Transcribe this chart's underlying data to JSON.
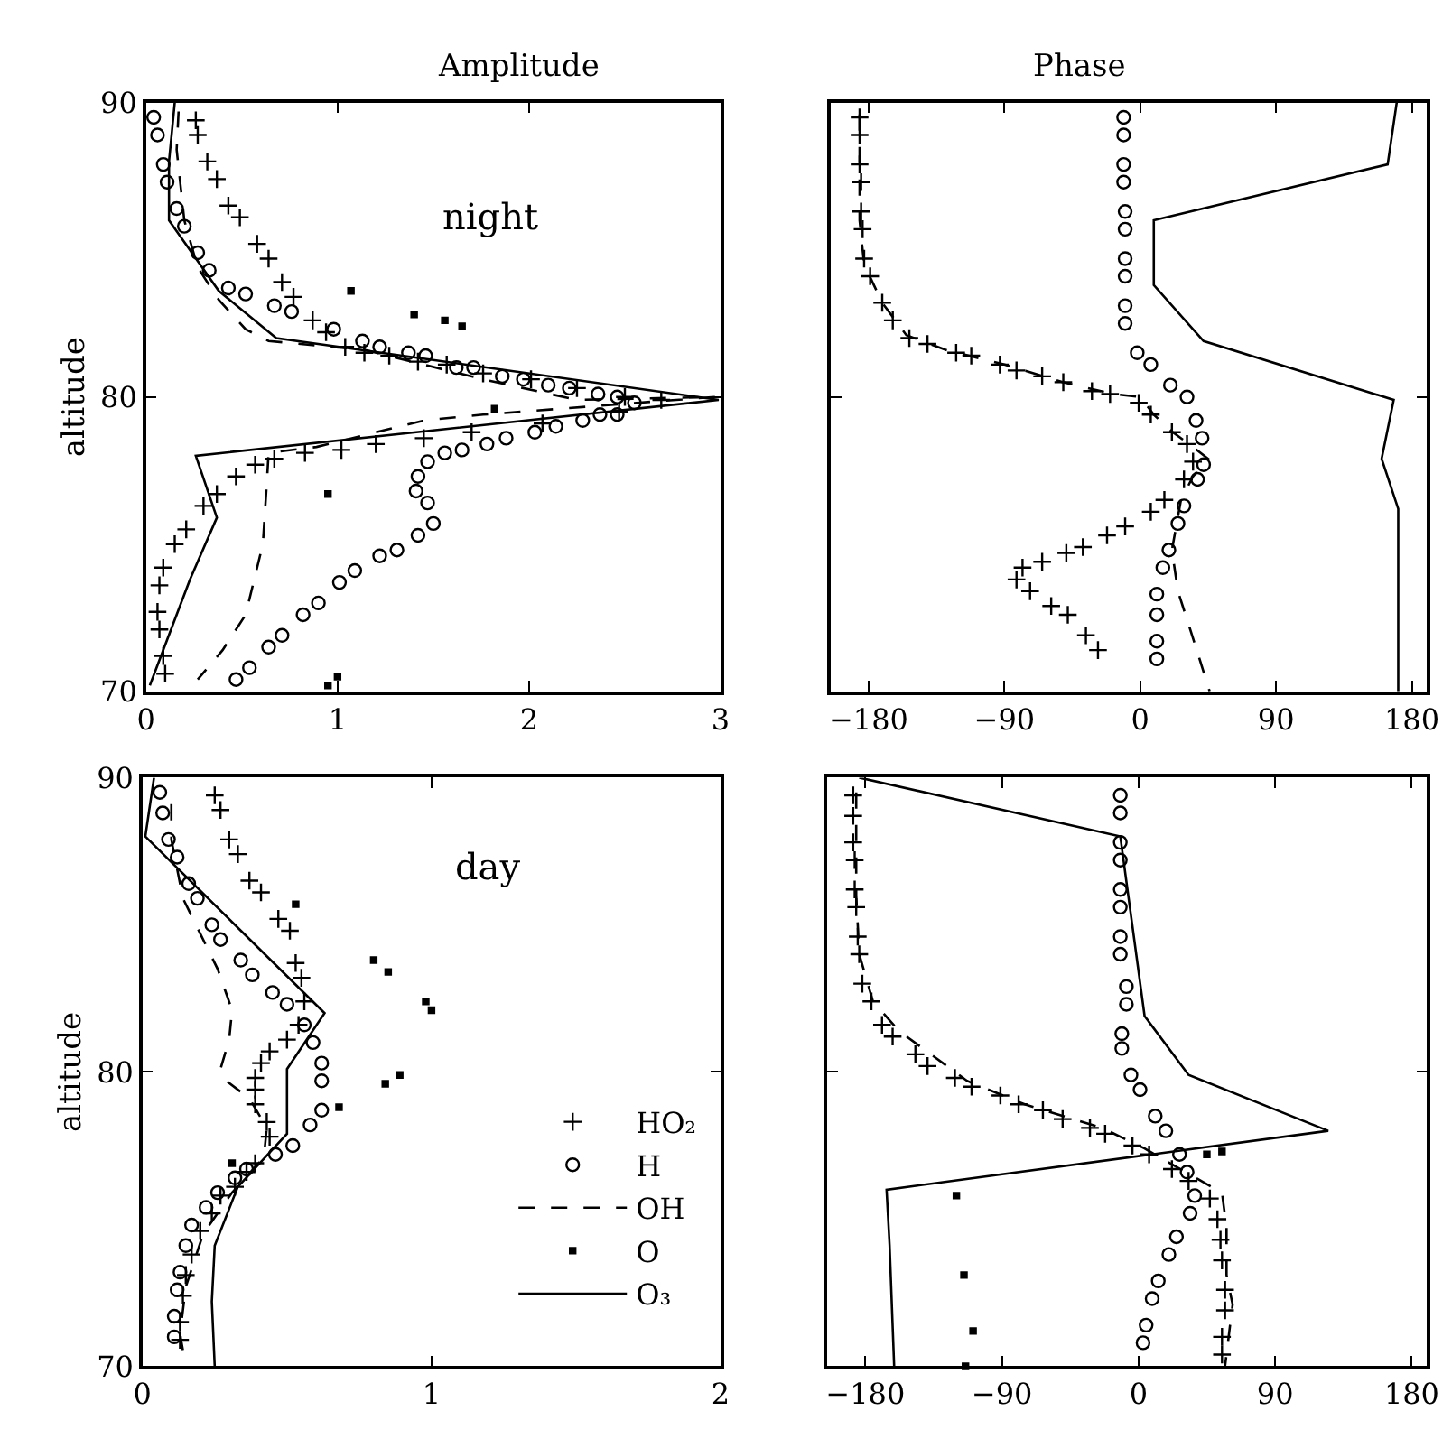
{
  "chart_data": [
    {
      "type": "line",
      "title": "Amplitude",
      "ylabel": "altitude",
      "annotations": [
        "night"
      ],
      "xlim": [
        0,
        3
      ],
      "xticks": [
        0,
        1,
        2,
        3
      ],
      "ylim": [
        70,
        90
      ],
      "yticks": [
        70,
        80,
        90
      ],
      "series": [
        {
          "type": "scatter",
          "marker": "cross",
          "color": "#000000",
          "x": [
            0.26,
            0.27,
            0.32,
            0.37,
            0.43,
            0.49,
            0.58,
            0.64,
            0.71,
            0.77,
            0.87,
            0.94,
            1.04,
            1.14,
            1.27,
            1.42,
            1.57,
            1.76,
            2.01,
            2.25,
            2.5,
            2.69,
            2.47,
            2.07,
            1.7,
            1.45,
            1.2,
            1.02,
            0.83,
            0.67,
            0.57,
            0.47,
            0.37,
            0.3,
            0.21,
            0.15,
            0.09,
            0.07,
            0.06,
            0.07,
            0.09,
            0.1
          ],
          "values": [
            89.4,
            88.9,
            88,
            87.4,
            86.5,
            86.1,
            85.2,
            84.7,
            83.9,
            83.4,
            82.6,
            82.2,
            81.7,
            81.5,
            81.4,
            81.2,
            81.1,
            80.8,
            80.6,
            80.3,
            80,
            79.9,
            79.5,
            79.1,
            78.8,
            78.6,
            78.4,
            78.2,
            78.1,
            77.9,
            77.7,
            77.3,
            76.7,
            76.3,
            75.5,
            75,
            74.2,
            73.6,
            72.7,
            72.1,
            71.2,
            70.6
          ]
        },
        {
          "type": "scatter",
          "marker": "circle",
          "color": "#000000",
          "x": [
            0.04,
            0.06,
            0.09,
            0.11,
            0.16,
            0.2,
            0.27,
            0.33,
            0.43,
            0.52,
            0.67,
            0.76,
            0.98,
            1.13,
            1.22,
            1.37,
            1.46,
            1.62,
            1.71,
            1.86,
            1.97,
            2.1,
            2.21,
            2.36,
            2.46,
            2.55,
            2.46,
            2.37,
            2.28,
            2.14,
            2.03,
            1.88,
            1.78,
            1.65,
            1.56,
            1.47,
            1.42,
            1.41,
            1.47,
            1.5,
            1.42,
            1.31,
            1.22,
            1.09,
            1.01,
            0.9,
            0.82,
            0.71,
            0.64,
            0.54,
            0.47
          ],
          "values": [
            89.5,
            88.9,
            87.9,
            87.3,
            86.4,
            85.8,
            84.9,
            84.3,
            83.7,
            83.5,
            83.1,
            82.9,
            82.3,
            81.9,
            81.7,
            81.5,
            81.4,
            81,
            81,
            80.7,
            80.6,
            80.4,
            80.3,
            80.1,
            80,
            79.8,
            79.4,
            79.4,
            79.2,
            79,
            78.8,
            78.6,
            78.4,
            78.2,
            78.1,
            77.8,
            77.3,
            76.8,
            76.4,
            75.7,
            75.3,
            74.8,
            74.6,
            74.1,
            73.7,
            73,
            72.6,
            71.9,
            71.5,
            70.8,
            70.4
          ]
        },
        {
          "line_style": "dashed",
          "color": "#000000",
          "x": [
            0.17,
            0.16,
            0.18,
            0.2,
            0.27,
            0.38,
            0.52,
            0.64,
            1.14,
            1.76,
            2.25,
            2.97,
            1.76,
            1.45,
            0.89,
            0.64,
            0.63,
            0.61,
            0.52,
            0.4,
            0.27
          ],
          "values": [
            89.7,
            88.4,
            87.2,
            86,
            84.4,
            83.3,
            82.3,
            81.9,
            81.6,
            80.6,
            79.9,
            80,
            79.4,
            79.2,
            78.3,
            78.1,
            77,
            75,
            72.6,
            71.4,
            70.4
          ]
        },
        {
          "type": "scatter",
          "marker": "square",
          "color": "#000000",
          "x": [
            1.07,
            1.4,
            1.56,
            1.65,
            1.82,
            0.95,
            0.95,
            1.0
          ],
          "values": [
            83.6,
            82.8,
            82.6,
            82.4,
            79.6,
            76.7,
            70.2,
            70.5
          ]
        },
        {
          "line_style": "solid",
          "color": "#000000",
          "x": [
            0.15,
            0.12,
            0.12,
            0.38,
            0.68,
            2.99,
            0.26,
            0.37,
            0.23,
            0.02
          ],
          "values": [
            90,
            88,
            86,
            83.6,
            82,
            79.9,
            78,
            75.9,
            73.8,
            70.2
          ]
        }
      ]
    },
    {
      "type": "line",
      "title": "Phase",
      "xlim": [
        -205,
        190
      ],
      "xticks": [
        -180,
        -90,
        0,
        90,
        180
      ],
      "ylim": [
        70,
        90
      ],
      "yticks": [
        70,
        80,
        90
      ],
      "tick_labels": "x",
      "series": [
        {
          "type": "scatter",
          "marker": "cross",
          "color": "#000000",
          "x": [
            -186,
            -186,
            -186,
            -185,
            -185,
            -184,
            -183,
            -179,
            -171,
            -164,
            -153,
            -141,
            -122,
            -112,
            -93,
            -82,
            -65,
            -51,
            -32,
            -20,
            -1,
            7,
            21,
            31,
            35,
            29,
            16,
            7,
            -10,
            -22,
            -38,
            -49,
            -65,
            -78,
            -82,
            -73,
            -59,
            -48,
            -36,
            -28
          ],
          "values": [
            89.5,
            88.9,
            87.9,
            87.3,
            86.3,
            85.7,
            84.7,
            84.1,
            83.2,
            82.6,
            82,
            81.8,
            81.5,
            81.4,
            81.1,
            80.9,
            80.7,
            80.5,
            80.2,
            80.1,
            79.8,
            79.4,
            78.8,
            78.4,
            77.8,
            77.2,
            76.5,
            76.1,
            75.6,
            75.3,
            74.9,
            74.7,
            74.4,
            74.2,
            73.8,
            73.4,
            72.9,
            72.6,
            71.9,
            71.4
          ]
        },
        {
          "type": "scatter",
          "marker": "circle",
          "color": "#000000",
          "x": [
            -11,
            -11,
            -11,
            -11,
            -10,
            -10,
            -10,
            -10,
            -10,
            -10,
            -2,
            7,
            20,
            31,
            37,
            41,
            42,
            38,
            29,
            25,
            19,
            15,
            11,
            11,
            11,
            11
          ],
          "values": [
            89.5,
            88.9,
            87.9,
            87.3,
            86.3,
            85.7,
            84.7,
            84.1,
            83.1,
            82.5,
            81.5,
            81.1,
            80.4,
            80,
            79.2,
            78.6,
            77.7,
            77.2,
            76.3,
            75.7,
            74.8,
            74.2,
            73.3,
            72.6,
            71.7,
            71.1
          ]
        },
        {
          "line_style": "dashed",
          "color": "#000000",
          "x": [
            -186,
            -186,
            -183,
            -171,
            -155,
            -129,
            -90,
            -51,
            -18,
            0,
            9,
            19,
            35,
            45,
            35,
            27,
            21,
            25,
            35,
            46
          ],
          "values": [
            89.6,
            86,
            84.5,
            83.2,
            82.1,
            81.6,
            81.1,
            80.5,
            80.1,
            80,
            79.4,
            78.9,
            78.3,
            77.9,
            77.3,
            76.5,
            74.8,
            73.4,
            71.8,
            70
          ]
        },
        {
          "line_style": "solid",
          "color": "#000000",
          "x": [
            170,
            164,
            9,
            9,
            42,
            168,
            160,
            171,
            171
          ],
          "values": [
            90,
            87.9,
            86,
            83.8,
            81.9,
            79.9,
            77.9,
            76.2,
            70
          ]
        }
      ]
    },
    {
      "type": "line",
      "ylabel": "altitude",
      "annotations": [
        "day"
      ],
      "xlim": [
        0,
        2
      ],
      "xticks": [
        0,
        1,
        2
      ],
      "ylim": [
        70,
        90
      ],
      "yticks": [
        70,
        80,
        90
      ],
      "legend": "bottom right",
      "series": [
        {
          "name": "HO₂",
          "type": "scatter",
          "marker": "cross",
          "color": "#000000",
          "x": [
            0.25,
            0.27,
            0.3,
            0.33,
            0.37,
            0.41,
            0.47,
            0.51,
            0.53,
            0.55,
            0.56,
            0.54,
            0.5,
            0.44,
            0.41,
            0.39,
            0.39,
            0.39,
            0.43,
            0.44,
            0.39,
            0.36,
            0.32,
            0.27,
            0.24,
            0.2,
            0.17,
            0.15,
            0.14,
            0.13,
            0.13
          ],
          "values": [
            89.4,
            88.9,
            87.9,
            87.4,
            86.5,
            86.1,
            85.2,
            84.8,
            83.7,
            83.2,
            82.4,
            81.6,
            81.1,
            80.7,
            80.3,
            79.8,
            79.4,
            78.9,
            78.3,
            77.8,
            76.9,
            76.6,
            76.1,
            75.8,
            75.2,
            74.6,
            73.8,
            73.1,
            72.4,
            71.5,
            70.9
          ]
        },
        {
          "name": "H",
          "type": "scatter",
          "marker": "circle",
          "color": "#000000",
          "x": [
            0.06,
            0.07,
            0.09,
            0.12,
            0.16,
            0.19,
            0.24,
            0.27,
            0.34,
            0.38,
            0.45,
            0.5,
            0.56,
            0.59,
            0.62,
            0.62,
            0.62,
            0.58,
            0.52,
            0.46,
            0.36,
            0.32,
            0.26,
            0.22,
            0.17,
            0.15,
            0.13,
            0.12,
            0.11,
            0.11
          ],
          "values": [
            89.5,
            88.8,
            87.9,
            87.3,
            86.4,
            85.9,
            85,
            84.5,
            83.8,
            83.3,
            82.7,
            82.3,
            81.6,
            81,
            80.3,
            79.7,
            78.7,
            78.2,
            77.5,
            77.2,
            76.7,
            76.4,
            75.9,
            75.4,
            74.8,
            74.1,
            73.2,
            72.6,
            71.7,
            71
          ]
        },
        {
          "name": "OH",
          "line_style": "dashed",
          "color": "#000000",
          "x": [
            0.1,
            0.1,
            0.12,
            0.14,
            0.19,
            0.26,
            0.31,
            0.3,
            0.27,
            0.29,
            0.37,
            0.43,
            0.42,
            0.31,
            0.21,
            0.15,
            0.13,
            0.15
          ],
          "values": [
            89.1,
            87.9,
            86.9,
            85.9,
            84.9,
            83.5,
            82.1,
            81.1,
            80.1,
            79.7,
            79.1,
            78.1,
            77.1,
            75.9,
            74.5,
            72.7,
            71.1,
            70
          ]
        },
        {
          "name": "O",
          "type": "scatter",
          "marker": "square",
          "color": "#000000",
          "x": [
            0.53,
            0.8,
            0.85,
            0.98,
            1.0,
            0.89,
            0.84,
            0.68,
            0.31
          ],
          "values": [
            85.7,
            83.8,
            83.4,
            82.4,
            82.1,
            79.9,
            79.6,
            78.8,
            76.9
          ]
        },
        {
          "name": "O₃",
          "line_style": "solid",
          "color": "#000000",
          "x": [
            0.04,
            0.01,
            0.63,
            0.5,
            0.5,
            0.33,
            0.25,
            0.24,
            0.25
          ],
          "values": [
            90,
            88,
            82,
            80.1,
            77.9,
            76.1,
            74.1,
            72.2,
            70
          ]
        }
      ]
    },
    {
      "type": "line",
      "xlim": [
        -205,
        190
      ],
      "xticks": [
        -180,
        -90,
        0,
        90,
        180
      ],
      "ylim": [
        70,
        90
      ],
      "yticks": [
        70,
        80,
        90
      ],
      "tick_labels": "x",
      "series": [
        {
          "type": "scatter",
          "marker": "cross",
          "color": "#000000",
          "x": [
            -188,
            -188,
            -188,
            -187,
            -187,
            -186,
            -185,
            -184,
            -182,
            -176,
            -169,
            -162,
            -147,
            -139,
            -121,
            -110,
            -91,
            -79,
            -63,
            -50,
            -32,
            -22,
            -4,
            7,
            22,
            33,
            47,
            52,
            54,
            55,
            57,
            57,
            55,
            55
          ],
          "values": [
            89.4,
            88.7,
            87.8,
            87.2,
            86.2,
            85.6,
            84.6,
            84,
            83,
            82.4,
            81.6,
            81.2,
            80.6,
            80.2,
            79.8,
            79.5,
            79.2,
            78.9,
            78.7,
            78.4,
            78.1,
            77.9,
            77.5,
            77.2,
            76.7,
            76.3,
            75.7,
            75,
            74.3,
            73.6,
            72.6,
            71.9,
            71,
            70.4
          ]
        },
        {
          "type": "scatter",
          "marker": "circle",
          "color": "#000000",
          "x": [
            -12,
            -12,
            -12,
            -12,
            -12,
            -12,
            -12,
            -12,
            -8,
            -8,
            -11,
            -11,
            -5,
            1,
            11,
            18,
            27,
            32,
            37,
            34,
            25,
            20,
            13,
            9,
            5,
            3
          ],
          "values": [
            89.4,
            88.8,
            87.8,
            87.2,
            86.2,
            85.6,
            84.6,
            84,
            82.9,
            82.3,
            81.3,
            80.8,
            79.9,
            79.4,
            78.5,
            78,
            77.2,
            76.6,
            75.8,
            75.2,
            74.4,
            73.8,
            72.9,
            72.3,
            71.4,
            70.8
          ]
        },
        {
          "line_style": "dashed",
          "color": "#000000",
          "x": [
            -186,
            -186,
            -184,
            -175,
            -158,
            -113,
            -75,
            -24,
            4,
            31,
            55,
            58,
            58,
            62,
            57
          ],
          "values": [
            89.5,
            86,
            84,
            82.4,
            81.4,
            79.7,
            78.9,
            78.1,
            77.4,
            76.6,
            75.9,
            74.7,
            73.1,
            72.1,
            70
          ]
        },
        {
          "type": "scatter",
          "marker": "square",
          "color": "#000000",
          "x": [
            -120,
            -115,
            45,
            55,
            -114,
            -109
          ],
          "values": [
            75.8,
            73.1,
            77.2,
            77.3,
            70,
            71.2
          ]
        },
        {
          "line_style": "solid",
          "color": "#000000",
          "x": [
            -184,
            -12,
            4,
            33,
            125,
            -166,
            -164,
            -161
          ],
          "values": [
            90,
            88,
            81.9,
            79.9,
            78,
            76,
            74.1,
            70
          ]
        }
      ]
    }
  ]
}
